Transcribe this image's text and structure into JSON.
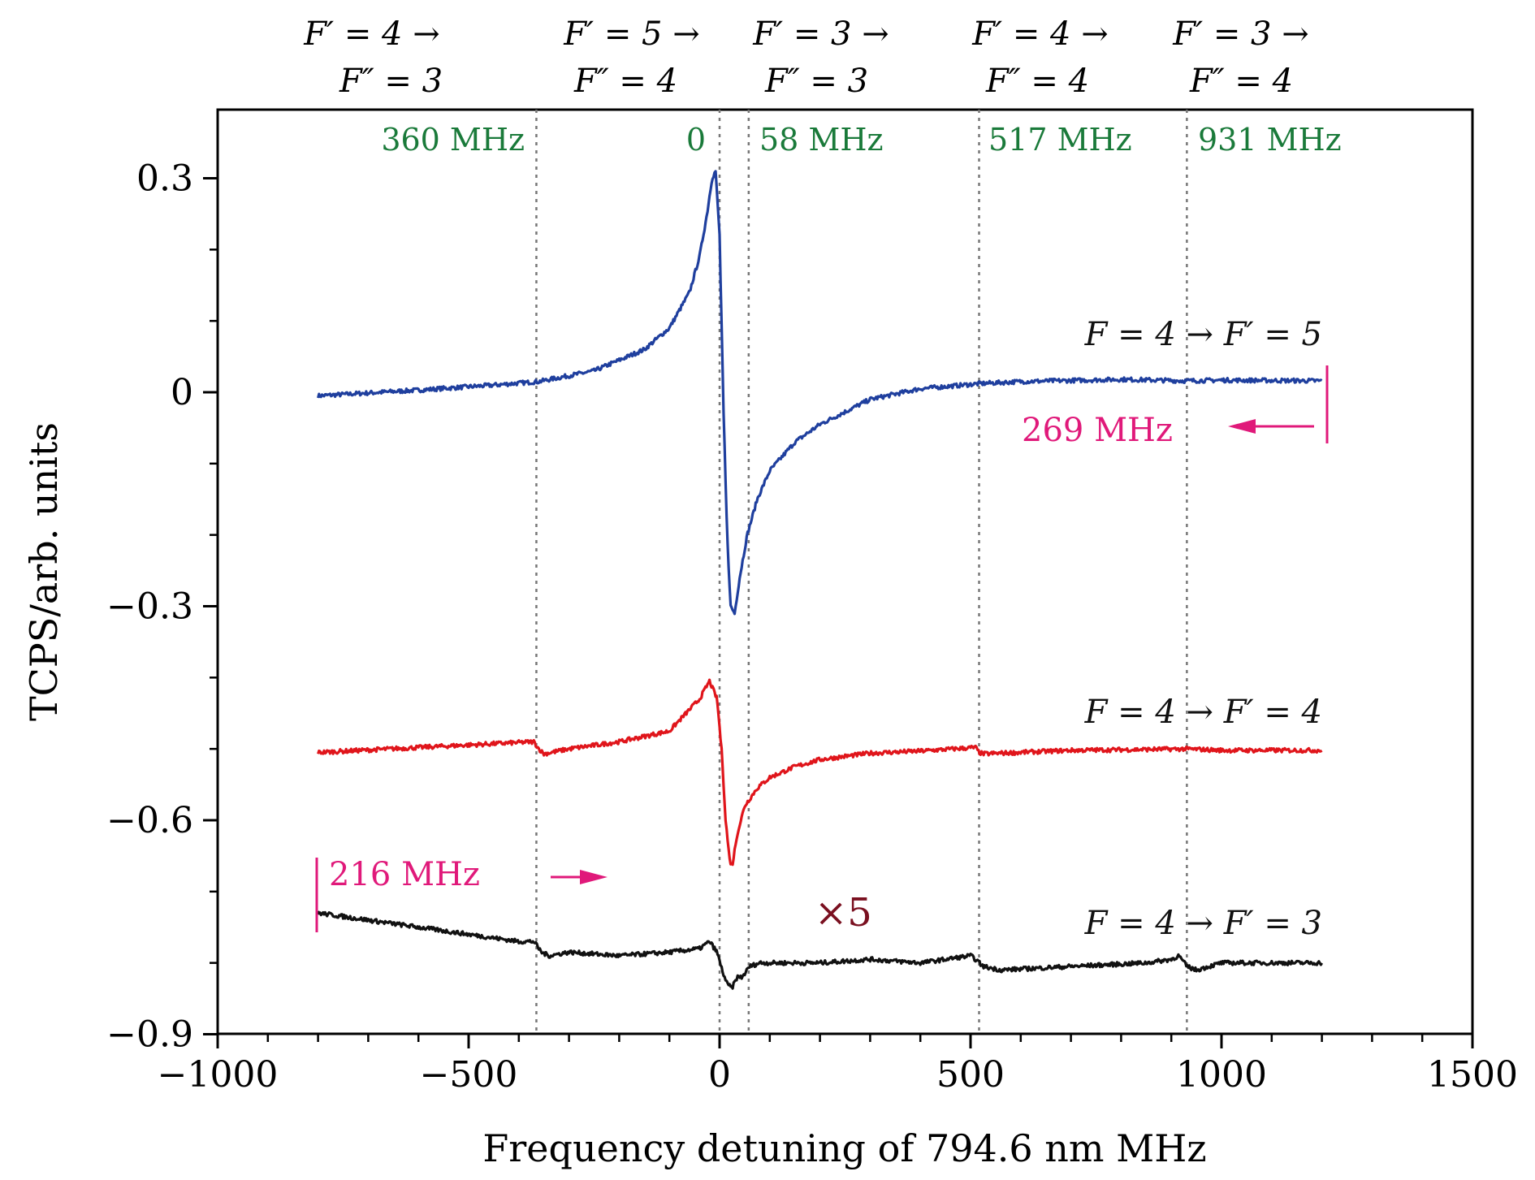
{
  "chart_data": {
    "type": "line",
    "xlabel": "Frequency detuning of 794.6 nm MHz",
    "ylabel": "TCPS/arb. units",
    "xlim": [
      -1000,
      1500
    ],
    "ylim": [
      -0.9,
      0.4
    ],
    "x_ticks": [
      -1000,
      -500,
      0,
      500,
      1000,
      1500
    ],
    "x_tick_labels": [
      "−1000",
      "−500",
      "0",
      "500",
      "1000",
      "1500"
    ],
    "y_ticks": [
      0.3,
      0,
      -0.3,
      -0.6,
      -0.9
    ],
    "y_tick_labels": [
      "0.3",
      "0",
      "−0.3",
      "−0.6",
      "−0.9"
    ],
    "grid": false,
    "transitions_top": [
      {
        "line1": "F′ = 4 →",
        "line2": "F″ = 3",
        "x": -360,
        "freq_label": "360 MHz"
      },
      {
        "line1": "F′ = 5 →",
        "line2": "F″ = 4",
        "x": 0,
        "freq_label": "0"
      },
      {
        "line1": "F′ = 3 →",
        "line2": "F″ = 3",
        "x": 58,
        "freq_label": "58 MHz"
      },
      {
        "line1": "F′ = 4 →",
        "line2": "F″ = 4",
        "x": 517,
        "freq_label": "517 MHz"
      },
      {
        "line1": "F′ = 3 →",
        "line2": "F″ = 4",
        "x": 931,
        "freq_label": "931 MHz"
      }
    ],
    "dashed_lines_x": [
      -365,
      0,
      58,
      517,
      931
    ],
    "series": [
      {
        "name": "F = 4 → F′ = 5",
        "color": "#1f3f9e",
        "offset": 0.0,
        "x": [
          -800,
          -600,
          -450,
          -360,
          -250,
          -150,
          -100,
          -60,
          -40,
          -25,
          -15,
          -8,
          0,
          8,
          15,
          22,
          30,
          40,
          55,
          75,
          100,
          150,
          200,
          300,
          400,
          517,
          600,
          800,
          931,
          1000,
          1200
        ],
        "y": [
          -0.005,
          0.003,
          0.01,
          0.015,
          0.03,
          0.06,
          0.09,
          0.14,
          0.19,
          0.25,
          0.3,
          0.31,
          0.22,
          -0.03,
          -0.2,
          -0.3,
          -0.31,
          -0.26,
          -0.2,
          -0.15,
          -0.11,
          -0.07,
          -0.045,
          -0.01,
          0.005,
          0.012,
          0.015,
          0.018,
          0.016,
          0.017,
          0.016
        ]
      },
      {
        "name": "F = 4 → F′ = 4",
        "color": "#e0151b",
        "offset": -0.5,
        "x": [
          -800,
          -600,
          -370,
          -360,
          -350,
          -300,
          -200,
          -100,
          -40,
          -20,
          -5,
          5,
          12,
          20,
          25,
          35,
          50,
          75,
          100,
          150,
          200,
          300,
          400,
          510,
          517,
          525,
          700,
          931,
          1000,
          1200
        ],
        "y": [
          -0.505,
          -0.498,
          -0.49,
          -0.5,
          -0.507,
          -0.5,
          -0.49,
          -0.475,
          -0.43,
          -0.405,
          -0.43,
          -0.51,
          -0.6,
          -0.655,
          -0.665,
          -0.62,
          -0.58,
          -0.555,
          -0.54,
          -0.525,
          -0.515,
          -0.506,
          -0.503,
          -0.498,
          -0.505,
          -0.507,
          -0.502,
          -0.5,
          -0.502,
          -0.502
        ]
      },
      {
        "name": "F = 4 → F′ = 3",
        "color": "#111111",
        "offset": -0.8,
        "x": [
          -800,
          -700,
          -600,
          -500,
          -400,
          -370,
          -355,
          -340,
          -300,
          -200,
          -100,
          -40,
          -20,
          -5,
          5,
          15,
          25,
          35,
          45,
          60,
          80,
          100,
          200,
          300,
          400,
          500,
          510,
          525,
          560,
          700,
          850,
          900,
          915,
          931,
          950,
          1000,
          1200
        ],
        "y": [
          -0.73,
          -0.74,
          -0.75,
          -0.76,
          -0.77,
          -0.77,
          -0.785,
          -0.79,
          -0.785,
          -0.79,
          -0.785,
          -0.78,
          -0.77,
          -0.785,
          -0.81,
          -0.83,
          -0.835,
          -0.82,
          -0.82,
          -0.805,
          -0.8,
          -0.8,
          -0.8,
          -0.795,
          -0.8,
          -0.79,
          -0.795,
          -0.805,
          -0.81,
          -0.805,
          -0.8,
          -0.795,
          -0.79,
          -0.805,
          -0.81,
          -0.8,
          -0.8
        ]
      }
    ],
    "annotations": {
      "scan_top_label": "269 MHz",
      "scan_bottom_label": "216 MHz",
      "scale_factor": "×5",
      "label_f5": "F = 4 → F′ = 5",
      "label_f4": "F = 4 → F′ = 4",
      "label_f3": "F = 4 → F′ = 3"
    },
    "colors": {
      "freq_label": "#1a7a3a",
      "scan_marker": "#e0197a",
      "scale_factor": "#7a1020",
      "blue": "#1f3f9e",
      "red": "#e0151b",
      "black": "#111111"
    }
  }
}
